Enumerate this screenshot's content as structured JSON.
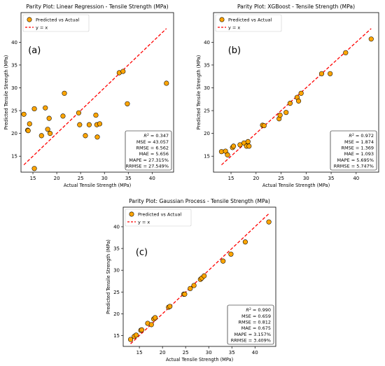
{
  "chart_data": [
    {
      "panel_label": "(a)",
      "type": "scatter",
      "title": "Parity Plot: Linear Regression - Tensile Strength (MPa)",
      "xlabel": "Actual Tensile Strength (MPa)",
      "ylabel": "Predicted Tensile Strength (MPa)",
      "xlim": [
        12.5,
        44.5
      ],
      "ylim": [
        11.5,
        46.5
      ],
      "xticks": [
        15,
        20,
        25,
        30,
        35,
        40
      ],
      "yticks": [
        15,
        20,
        25,
        30,
        35,
        40
      ],
      "grid": false,
      "legend_position": "top-left",
      "series": [
        {
          "name": "Predicted vs Actual",
          "x": [
            13.1,
            13.9,
            14.3,
            14.0,
            15.3,
            15.3,
            16.8,
            17.6,
            18.1,
            18.4,
            18.6,
            21.3,
            21.6,
            24.6,
            24.8,
            26.0,
            26.8,
            28.2,
            28.4,
            28.5,
            29.0,
            33.1,
            33.9,
            34.8,
            43.0
          ],
          "y": [
            24.2,
            20.7,
            22.1,
            20.6,
            12.3,
            25.4,
            19.5,
            25.6,
            20.9,
            23.3,
            20.0,
            23.8,
            28.8,
            24.5,
            21.9,
            19.5,
            21.9,
            24.0,
            21.9,
            19.2,
            22.1,
            33.3,
            33.6,
            26.5,
            31.0
          ]
        },
        {
          "name": "y = x",
          "x": [
            13.1,
            43.0
          ],
          "y": [
            13.1,
            43.0
          ]
        }
      ],
      "metrics": {
        "r2": "= 0.347",
        "lines": [
          "MSE = 43.057",
          "RMSE = 6.562",
          "MAE = 5.656",
          "MAPE = 27.315%",
          "RRMSE = 27.549%"
        ]
      }
    },
    {
      "panel_label": "(b)",
      "type": "scatter",
      "title": "Parity Plot: XGBoost - Tensile Strength (MPa)",
      "xlabel": "Actual Tensile Strength (MPa)",
      "ylabel": "Predicted Tensile Strength (MPa)",
      "xlim": [
        11.5,
        44.5
      ],
      "ylim": [
        11.5,
        46.5
      ],
      "xticks": [
        15,
        20,
        25,
        30,
        35,
        40
      ],
      "yticks": [
        15,
        20,
        25,
        30,
        35,
        40
      ],
      "grid": false,
      "legend_position": "top-left",
      "series": [
        {
          "name": "Predicted vs Actual",
          "x": [
            13.1,
            13.9,
            14.3,
            15.3,
            15.5,
            16.8,
            17.6,
            18.1,
            18.4,
            18.6,
            21.3,
            21.6,
            24.6,
            24.8,
            26.0,
            26.8,
            28.2,
            28.5,
            29.0,
            33.1,
            34.8,
            37.9,
            43.0
          ],
          "y": [
            16.0,
            16.1,
            15.3,
            16.9,
            17.2,
            17.5,
            17.9,
            17.2,
            18.2,
            17.2,
            21.8,
            21.7,
            23.2,
            24.0,
            24.6,
            26.6,
            27.9,
            27.1,
            28.8,
            33.1,
            33.1,
            37.7,
            40.7
          ]
        },
        {
          "name": "y = x",
          "x": [
            13.1,
            43.0
          ],
          "y": [
            13.1,
            43.0
          ]
        }
      ],
      "metrics": {
        "r2": "= 0.972",
        "lines": [
          "MSE = 1.874",
          "RMSE = 1.369",
          "MAE = 1.093",
          "MAPE = 5.695%",
          "RRMSE = 5.747%"
        ]
      }
    },
    {
      "panel_label": "(c)",
      "type": "scatter",
      "title": "Parity Plot: Gaussian Process - Tensile Strength (MPa)",
      "xlabel": "Actual Tensile Strength (MPa)",
      "ylabel": "Predicted Tensile Strength (MPa)",
      "xlim": [
        11.5,
        44.5
      ],
      "ylim": [
        12.5,
        44.5
      ],
      "xticks": [
        15,
        20,
        25,
        30,
        35,
        40
      ],
      "yticks": [
        15,
        20,
        25,
        30,
        35,
        40
      ],
      "grid": false,
      "legend_position": "top-left",
      "series": [
        {
          "name": "Predicted vs Actual",
          "x": [
            13.1,
            13.9,
            14.3,
            15.3,
            15.5,
            16.8,
            17.6,
            18.1,
            18.4,
            21.3,
            21.6,
            24.6,
            24.8,
            26.0,
            26.8,
            28.2,
            28.5,
            29.0,
            33.1,
            34.8,
            37.9,
            43.0
          ],
          "y": [
            14.1,
            14.8,
            15.1,
            16.2,
            16.3,
            17.8,
            17.5,
            18.8,
            19.1,
            21.5,
            21.7,
            24.5,
            24.5,
            25.8,
            26.5,
            27.9,
            28.2,
            28.7,
            32.1,
            33.7,
            36.5,
            41.1
          ]
        },
        {
          "name": "y = x",
          "x": [
            13.1,
            43.0
          ],
          "y": [
            13.1,
            43.0
          ]
        }
      ],
      "metrics": {
        "r2": "= 0.990",
        "lines": [
          "MSE = 0.659",
          "RMSE = 0.812",
          "MAE = 0.675",
          "MAPE = 3.157%",
          "RRMSE = 3.409%"
        ]
      }
    }
  ],
  "colors": {
    "marker_fill": "#FFA500",
    "marker_edge": "#000000",
    "identity_line": "#FF0000"
  }
}
